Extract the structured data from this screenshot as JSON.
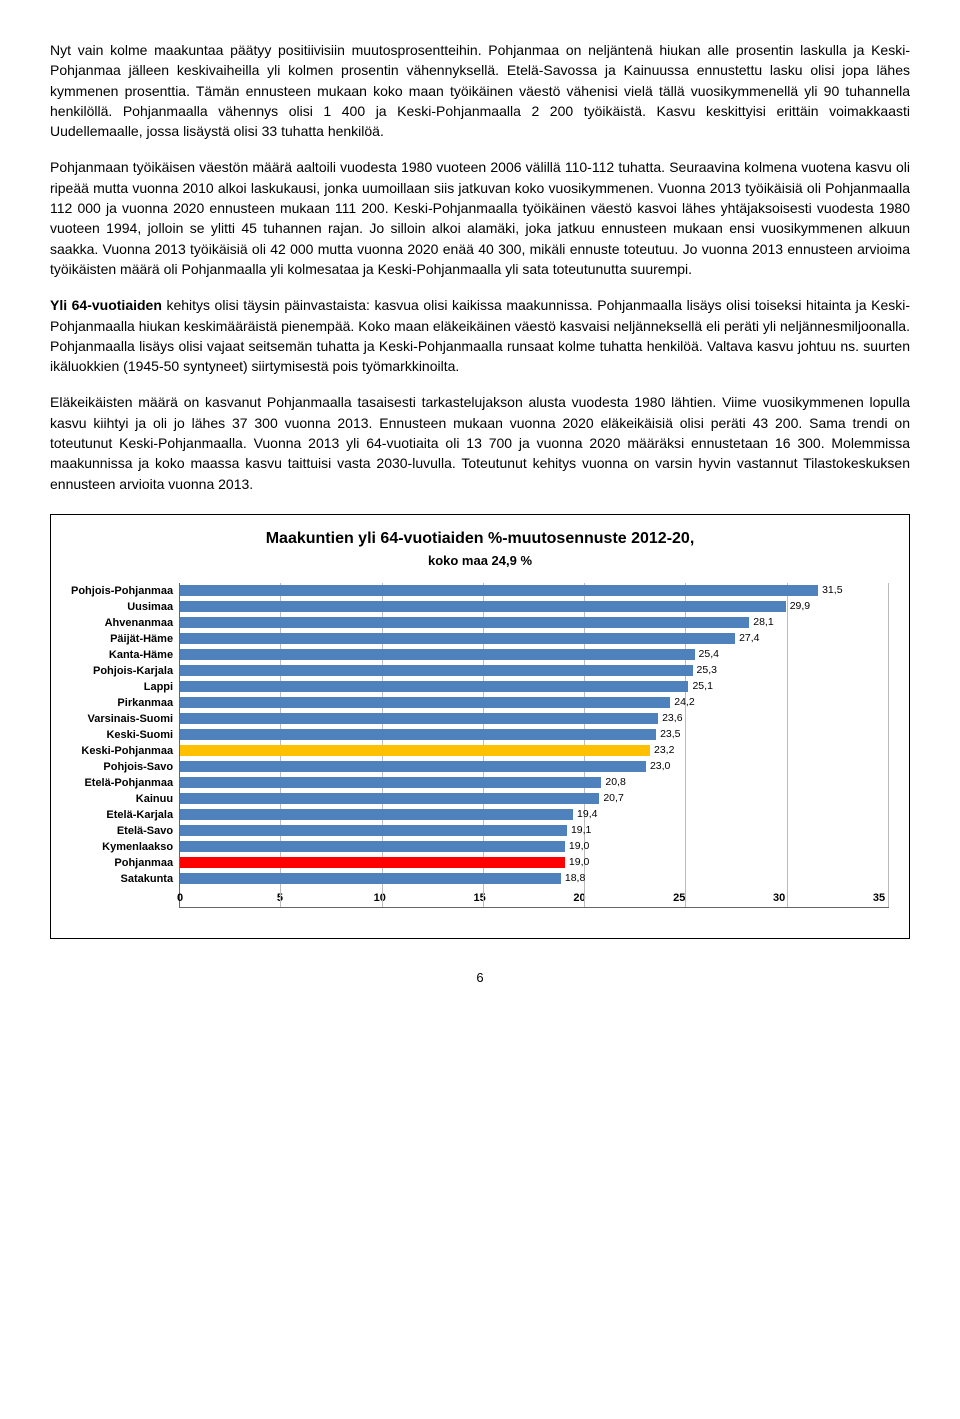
{
  "paragraphs": [
    "Nyt vain kolme maakuntaa päätyy positiivisiin muutosprosentteihin. Pohjanmaa on neljäntenä hiukan alle prosentin laskulla ja Keski-Pohjanmaa jälleen keskivaiheilla yli kolmen prosentin vähennyksellä. Etelä-Savossa ja Kainuussa ennustettu lasku olisi jopa lähes kymmenen prosenttia. Tämän ennusteen mukaan koko maan työikäinen väestö vähenisi vielä tällä vuosikymmenellä yli 90 tuhannella henkilöllä. Pohjanmaalla vähennys olisi 1 400 ja Keski-Pohjanmaalla 2 200 työikäistä. Kasvu keskittyisi erittäin voimakkaasti Uudellemaalle, jossa lisäystä olisi 33 tuhatta henkilöä.",
    "Pohjanmaan työikäisen väestön määrä aaltoili vuodesta 1980 vuoteen 2006 välillä 110-112 tuhatta. Seuraavina kolmena vuotena kasvu oli ripeää mutta vuonna 2010 alkoi laskukausi, jonka uumoillaan siis jatkuvan koko vuosikymmenen. Vuonna 2013 työikäisiä oli Pohjanmaalla 112 000 ja vuonna 2020 ennusteen mukaan 111 200. Keski-Pohjanmaalla työikäinen väestö kasvoi lähes yhtäjaksoisesti vuodesta 1980 vuoteen 1994, jolloin se ylitti 45 tuhannen rajan. Jo silloin alkoi alamäki, joka jatkuu ennusteen mukaan ensi vuosikymmenen alkuun saakka. Vuonna 2013 työikäisiä oli 42 000 mutta vuonna 2020 enää 40 300, mikäli ennuste toteutuu. Jo vuonna 2013 ennusteen arvioima työikäisten määrä oli Pohjanmaalla yli kolmesataa ja Keski-Pohjanmaalla yli sata toteutunutta suurempi.",
    "Yli 64-vuotiaiden kehitys olisi täysin päinvastaista: kasvua olisi kaikissa maakunnissa. Pohjanmaalla lisäys olisi toiseksi hitainta ja Keski-Pohjanmaalla hiukan keskimääräistä pienempää. Koko maan eläkeikäinen väestö kasvaisi neljänneksellä eli peräti yli neljännesmiljoonalla. Pohjanmaalla lisäys olisi vajaat seitsemän tuhatta ja Keski-Pohjanmaalla runsaat kolme tuhatta henkilöä. Valtava kasvu johtuu ns. suurten ikäluokkien (1945-50 syntyneet) siirtymisestä pois työmarkkinoilta.",
    "Eläkeikäisten määrä on kasvanut Pohjanmaalla tasaisesti tarkastelujakson alusta vuodesta 1980 lähtien. Viime vuosikymmenen lopulla kasvu kiihtyi ja oli jo lähes 37 300 vuonna 2013. Ennusteen mukaan vuonna 2020 eläkeikäisiä olisi peräti 43 200. Sama trendi on toteutunut Keski-Pohjanmaalla. Vuonna 2013 yli 64-vuotiaita oli 13 700 ja vuonna 2020 määräksi ennustetaan 16 300. Molemmissa maakunnissa ja koko maassa kasvu taittuisi vasta 2030-luvulla. Toteutunut kehitys vuonna on varsin hyvin vastannut Tilastokeskuksen ennusteen arvioita vuonna 2013."
  ],
  "chart": {
    "title": "Maakuntien yli 64-vuotiaiden %-muutosennuste 2012-20,",
    "subtitle": "koko maa 24,9 %",
    "xmax": 35,
    "xtick_step": 5,
    "xticks": [
      "0",
      "5",
      "10",
      "15",
      "20",
      "25",
      "30",
      "35"
    ],
    "default_color": "#4f81bd",
    "highlight_colors": {
      "Keski-Pohjanmaa": "#ffc000",
      "Pohjanmaa": "#ff0000"
    },
    "series": [
      {
        "label": "Pohjois-Pohjanmaa",
        "value": 31.5,
        "display": "31,5"
      },
      {
        "label": "Uusimaa",
        "value": 29.9,
        "display": "29,9"
      },
      {
        "label": "Ahvenanmaa",
        "value": 28.1,
        "display": "28,1"
      },
      {
        "label": "Päijät-Häme",
        "value": 27.4,
        "display": "27,4"
      },
      {
        "label": "Kanta-Häme",
        "value": 25.4,
        "display": "25,4"
      },
      {
        "label": "Pohjois-Karjala",
        "value": 25.3,
        "display": "25,3"
      },
      {
        "label": "Lappi",
        "value": 25.1,
        "display": "25,1"
      },
      {
        "label": "Pirkanmaa",
        "value": 24.2,
        "display": "24,2"
      },
      {
        "label": "Varsinais-Suomi",
        "value": 23.6,
        "display": "23,6"
      },
      {
        "label": "Keski-Suomi",
        "value": 23.5,
        "display": "23,5"
      },
      {
        "label": "Keski-Pohjanmaa",
        "value": 23.2,
        "display": "23,2"
      },
      {
        "label": "Pohjois-Savo",
        "value": 23.0,
        "display": "23,0"
      },
      {
        "label": "Etelä-Pohjanmaa",
        "value": 20.8,
        "display": "20,8"
      },
      {
        "label": "Kainuu",
        "value": 20.7,
        "display": "20,7"
      },
      {
        "label": "Etelä-Karjala",
        "value": 19.4,
        "display": "19,4"
      },
      {
        "label": "Etelä-Savo",
        "value": 19.1,
        "display": "19,1"
      },
      {
        "label": "Kymenlaakso",
        "value": 19.0,
        "display": "19,0"
      },
      {
        "label": "Pohjanmaa",
        "value": 19.0,
        "display": "19,0"
      },
      {
        "label": "Satakunta",
        "value": 18.8,
        "display": "18,8"
      }
    ]
  },
  "page_number": "6"
}
